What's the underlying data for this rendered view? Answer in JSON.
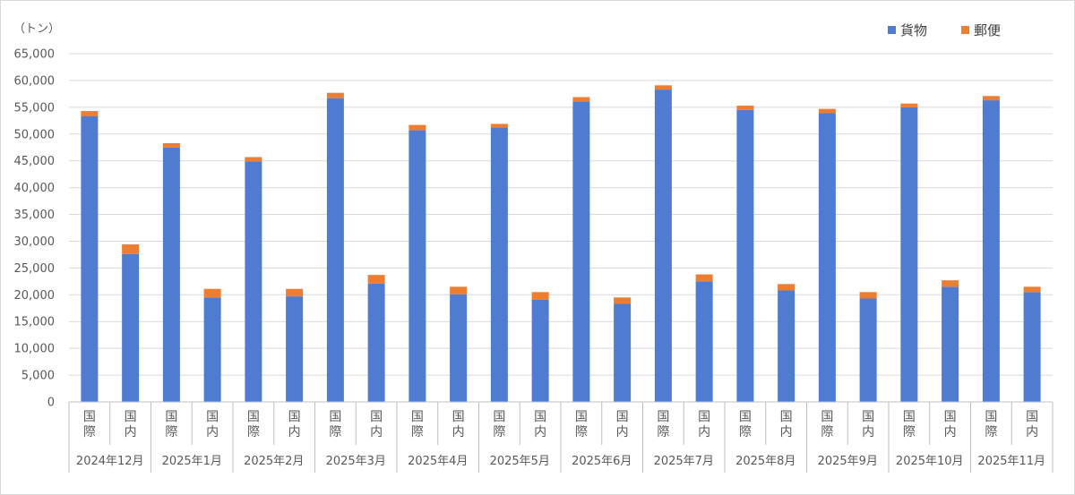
{
  "chart_data": {
    "type": "bar",
    "stacked": true,
    "title": "",
    "xlabel": "",
    "ylabel": "",
    "unit_label": "（トン）",
    "ylim": [
      0,
      65000
    ],
    "yticks": [
      "0",
      "5,000",
      "10,000",
      "15,000",
      "20,000",
      "25,000",
      "30,000",
      "35,000",
      "40,000",
      "45,000",
      "50,000",
      "55,000",
      "60,000",
      "65,000"
    ],
    "ytick_values": [
      0,
      5000,
      10000,
      15000,
      20000,
      25000,
      30000,
      35000,
      40000,
      45000,
      50000,
      55000,
      60000,
      65000
    ],
    "grid": true,
    "legend_position": "top-right",
    "months": [
      "2024年12月",
      "2025年1月",
      "2025年2月",
      "2025年3月",
      "2025年4月",
      "2025年5月",
      "2025年6月",
      "2025年7月",
      "2025年8月",
      "2025年9月",
      "2025年10月",
      "2025年11月"
    ],
    "categories": [
      "国際",
      "国内",
      "国際",
      "国内",
      "国際",
      "国内",
      "国際",
      "国内",
      "国際",
      "国内",
      "国際",
      "国内",
      "国際",
      "国内",
      "国際",
      "国内",
      "国際",
      "国内",
      "国際",
      "国内",
      "国際",
      "国内",
      "国際",
      "国内"
    ],
    "series": [
      {
        "name": "貨物",
        "color": "#4f7bd1",
        "values": [
          53300,
          27600,
          47500,
          19500,
          44900,
          19700,
          56700,
          22100,
          50700,
          20100,
          51200,
          19100,
          56100,
          18300,
          58300,
          22500,
          54500,
          20800,
          53900,
          19300,
          55000,
          21500,
          56300,
          20500
        ]
      },
      {
        "name": "郵便",
        "color": "#ed7d31",
        "values": [
          1000,
          1800,
          800,
          1600,
          800,
          1400,
          1000,
          1600,
          1000,
          1400,
          700,
          1400,
          800,
          1200,
          800,
          1300,
          800,
          1200,
          800,
          1200,
          700,
          1200,
          800,
          1000
        ]
      }
    ]
  }
}
